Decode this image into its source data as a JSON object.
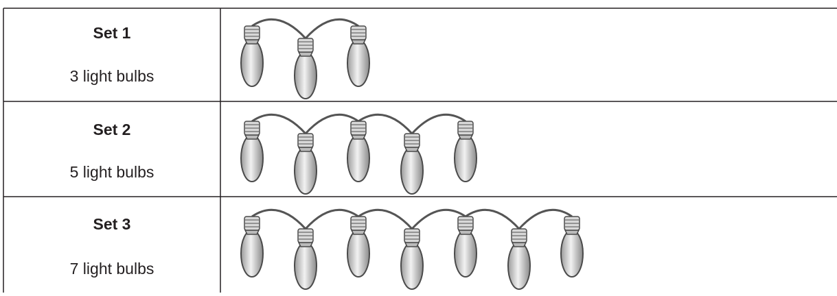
{
  "table": {
    "rows": [
      [
        "Set 1",
        "3 light bulbs"
      ],
      [
        "Set 2",
        "5 light bulbs"
      ],
      [
        "Set 3",
        "7 light bulbs"
      ]
    ]
  }
}
